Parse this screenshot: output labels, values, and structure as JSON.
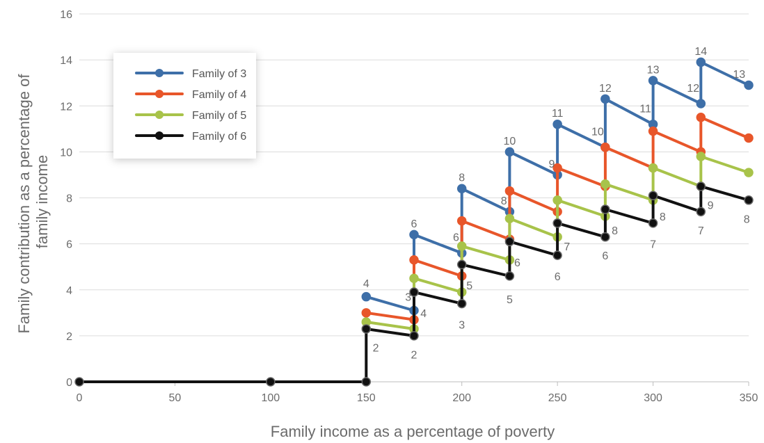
{
  "chart_data": {
    "type": "line",
    "xlabel": "Family income as a percentage of poverty",
    "ylabel_lines": [
      "Family contribution as a percentage of",
      "family income"
    ],
    "xlim": [
      0,
      350
    ],
    "ylim": [
      0,
      16
    ],
    "xticks": [
      0,
      50,
      100,
      150,
      200,
      250,
      300,
      350
    ],
    "yticks": [
      0,
      2,
      4,
      6,
      8,
      10,
      12,
      14,
      16
    ],
    "grid": "horizontal",
    "legend_position": "upper-left",
    "series": [
      {
        "name": "Family of 3",
        "color": "#3e6fa8",
        "points": [
          [
            150,
            3.7
          ],
          [
            175,
            3.1
          ],
          [
            175,
            6.4
          ],
          [
            200,
            5.6
          ],
          [
            200,
            8.4
          ],
          [
            225,
            7.4
          ],
          [
            225,
            10.0
          ],
          [
            250,
            9.0
          ],
          [
            250,
            11.2
          ],
          [
            275,
            10.2
          ],
          [
            275,
            12.3
          ],
          [
            300,
            11.2
          ],
          [
            300,
            13.1
          ],
          [
            325,
            12.1
          ],
          [
            325,
            13.9
          ],
          [
            350,
            12.9
          ]
        ]
      },
      {
        "name": "Family of 4",
        "color": "#e8562a",
        "points": [
          [
            150,
            3.0
          ],
          [
            175,
            2.7
          ],
          [
            175,
            5.3
          ],
          [
            200,
            4.6
          ],
          [
            200,
            7.0
          ],
          [
            225,
            6.2
          ],
          [
            225,
            8.3
          ],
          [
            250,
            7.4
          ],
          [
            250,
            9.3
          ],
          [
            275,
            8.5
          ],
          [
            275,
            10.2
          ],
          [
            300,
            9.3
          ],
          [
            300,
            10.9
          ],
          [
            325,
            10.0
          ],
          [
            325,
            11.5
          ],
          [
            350,
            10.6
          ]
        ]
      },
      {
        "name": "Family of 5",
        "color": "#a8c34a",
        "points": [
          [
            150,
            2.6
          ],
          [
            175,
            2.3
          ],
          [
            175,
            4.5
          ],
          [
            200,
            3.9
          ],
          [
            200,
            5.9
          ],
          [
            225,
            5.3
          ],
          [
            225,
            7.1
          ],
          [
            250,
            6.3
          ],
          [
            250,
            7.9
          ],
          [
            275,
            7.2
          ],
          [
            275,
            8.6
          ],
          [
            300,
            7.9
          ],
          [
            300,
            9.3
          ],
          [
            325,
            8.5
          ],
          [
            325,
            9.8
          ],
          [
            350,
            9.1
          ]
        ]
      },
      {
        "name": "Family of 6",
        "color": "#111111",
        "points": [
          [
            0,
            0
          ],
          [
            100,
            0
          ],
          [
            150,
            0
          ],
          [
            150,
            2.3
          ],
          [
            175,
            2.0
          ],
          [
            175,
            3.9
          ],
          [
            200,
            3.4
          ],
          [
            200,
            5.1
          ],
          [
            225,
            4.6
          ],
          [
            225,
            6.1
          ],
          [
            250,
            5.5
          ],
          [
            250,
            6.9
          ],
          [
            275,
            6.3
          ],
          [
            275,
            7.5
          ],
          [
            300,
            6.9
          ],
          [
            300,
            8.1
          ],
          [
            325,
            7.4
          ],
          [
            325,
            8.5
          ],
          [
            350,
            7.9
          ]
        ]
      }
    ],
    "annotations": [
      {
        "text": "4",
        "x": 150,
        "y": 4.3
      },
      {
        "text": "6",
        "x": 175,
        "y": 6.9
      },
      {
        "text": "8",
        "x": 200,
        "y": 8.9
      },
      {
        "text": "10",
        "x": 225,
        "y": 10.5
      },
      {
        "text": "11",
        "x": 250,
        "y": 11.7
      },
      {
        "text": "12",
        "x": 275,
        "y": 12.8
      },
      {
        "text": "13",
        "x": 300,
        "y": 13.6
      },
      {
        "text": "14",
        "x": 325,
        "y": 14.4
      },
      {
        "text": "13",
        "x": 345,
        "y": 13.4
      },
      {
        "text": "3",
        "x": 172,
        "y": 3.7
      },
      {
        "text": "6",
        "x": 197,
        "y": 6.3
      },
      {
        "text": "8",
        "x": 222,
        "y": 7.9
      },
      {
        "text": "9",
        "x": 247,
        "y": 9.5
      },
      {
        "text": "10",
        "x": 271,
        "y": 10.9
      },
      {
        "text": "11",
        "x": 296,
        "y": 11.9
      },
      {
        "text": "12",
        "x": 321,
        "y": 12.8
      },
      {
        "text": "2",
        "x": 155,
        "y": 1.5
      },
      {
        "text": "2",
        "x": 175,
        "y": 1.2
      },
      {
        "text": "4",
        "x": 180,
        "y": 3.0
      },
      {
        "text": "3",
        "x": 200,
        "y": 2.5
      },
      {
        "text": "5",
        "x": 204,
        "y": 4.2
      },
      {
        "text": "5",
        "x": 225,
        "y": 3.6
      },
      {
        "text": "6",
        "x": 229,
        "y": 5.2
      },
      {
        "text": "6",
        "x": 250,
        "y": 4.6
      },
      {
        "text": "7",
        "x": 255,
        "y": 5.9
      },
      {
        "text": "6",
        "x": 275,
        "y": 5.5
      },
      {
        "text": "8",
        "x": 280,
        "y": 6.6
      },
      {
        "text": "7",
        "x": 300,
        "y": 6.0
      },
      {
        "text": "8",
        "x": 305,
        "y": 7.2
      },
      {
        "text": "7",
        "x": 325,
        "y": 6.6
      },
      {
        "text": "9",
        "x": 330,
        "y": 7.7
      },
      {
        "text": "8",
        "x": 349,
        "y": 7.1
      }
    ]
  }
}
